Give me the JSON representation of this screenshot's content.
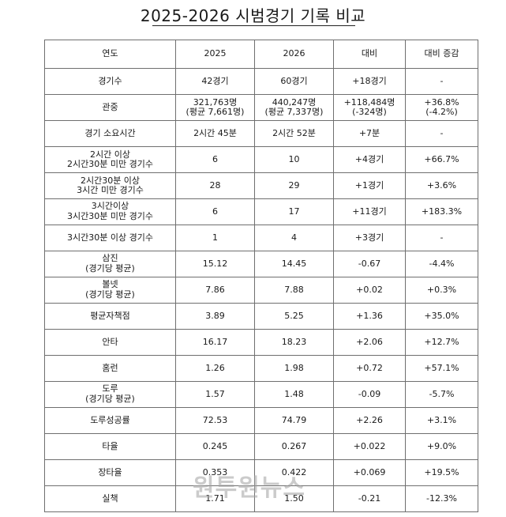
{
  "title": "2025-2026 시범경기 기록 비교",
  "headers": [
    "연도",
    "2025",
    "2026",
    "대비",
    "대비 증감"
  ],
  "rows": [
    {
      "label": "경기수",
      "v2025": "42경기",
      "v2026": "60경기",
      "diff": "+18경기",
      "pct": "-"
    },
    {
      "label": "관중",
      "v2025": "321,763명\n(평균 7,661명)",
      "v2026": "440,247명\n(평균 7,337명)",
      "diff": "+118,484명\n(-324명)",
      "pct": "+36.8%\n(-4.2%)"
    },
    {
      "label": "경기 소요시간",
      "v2025": "2시간 45분",
      "v2026": "2시간 52분",
      "diff": "+7분",
      "pct": "-"
    },
    {
      "label": "2시간 이상\n2시간30분 미만 경기수",
      "v2025": "6",
      "v2026": "10",
      "diff": "+4경기",
      "pct": "+66.7%"
    },
    {
      "label": "2시간30분 이상\n3시간 미만 경기수",
      "v2025": "28",
      "v2026": "29",
      "diff": "+1경기",
      "pct": "+3.6%"
    },
    {
      "label": "3시간이상\n3시간30분 미만 경기수",
      "v2025": "6",
      "v2026": "17",
      "diff": "+11경기",
      "pct": "+183.3%"
    },
    {
      "label": "3시간30분 이상 경기수",
      "v2025": "1",
      "v2026": "4",
      "diff": "+3경기",
      "pct": "-"
    },
    {
      "label": "삼진\n(경기당 평균)",
      "v2025": "15.12",
      "v2026": "14.45",
      "diff": "-0.67",
      "pct": "-4.4%"
    },
    {
      "label": "볼넷\n(경기당 평균)",
      "v2025": "7.86",
      "v2026": "7.88",
      "diff": "+0.02",
      "pct": "+0.3%"
    },
    {
      "label": "평균자책점",
      "v2025": "3.89",
      "v2026": "5.25",
      "diff": "+1.36",
      "pct": "+35.0%"
    },
    {
      "label": "안타",
      "v2025": "16.17",
      "v2026": "18.23",
      "diff": "+2.06",
      "pct": "+12.7%"
    },
    {
      "label": "홈런",
      "v2025": "1.26",
      "v2026": "1.98",
      "diff": "+0.72",
      "pct": "+57.1%"
    },
    {
      "label": "도루\n(경기당 평균)",
      "v2025": "1.57",
      "v2026": "1.48",
      "diff": "-0.09",
      "pct": "-5.7%"
    },
    {
      "label": "도루성공률",
      "v2025": "72.53",
      "v2026": "74.79",
      "diff": "+2.26",
      "pct": "+3.1%"
    },
    {
      "label": "타율",
      "v2025": "0.245",
      "v2026": "0.267",
      "diff": "+0.022",
      "pct": "+9.0%"
    },
    {
      "label": "장타율",
      "v2025": "0.353",
      "v2026": "0.422",
      "diff": "+0.069",
      "pct": "+19.5%"
    },
    {
      "label": "실책",
      "v2025": "1.71",
      "v2026": "1.50",
      "diff": "-0.21",
      "pct": "-12.3%"
    }
  ],
  "watermark": "원투원뉴스"
}
